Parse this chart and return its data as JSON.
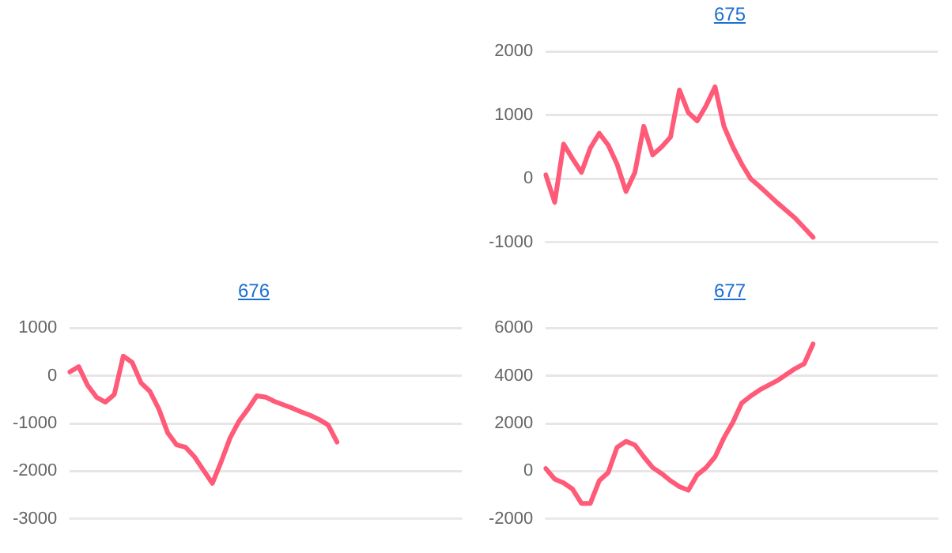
{
  "chart_data": [
    {
      "type": "line",
      "title": "675",
      "categories": [
        null,
        null,
        null,
        null,
        null,
        null,
        null,
        null,
        null,
        null,
        null,
        null,
        null,
        null,
        null,
        null,
        null,
        null,
        null,
        null,
        null,
        null,
        null,
        null,
        null,
        null,
        null,
        null,
        null,
        null,
        null,
        null,
        null,
        null,
        null,
        null,
        null,
        null,
        null,
        null,
        null,
        null,
        null,
        null,
        null
      ],
      "series": [
        {
          "color": "#ff5a78",
          "values": [
            60,
            -370,
            545,
            315,
            100,
            485,
            715,
            530,
            230,
            -200,
            100,
            825,
            375,
            500,
            655,
            1395,
            1040,
            910,
            1150,
            1445,
            825,
            500,
            230,
            0,
            -120,
            -250,
            -380,
            -500,
            -620,
            -770,
            -920,
            null,
            null,
            null,
            null,
            null,
            null,
            null,
            null,
            null,
            null,
            null,
            null,
            null,
            null
          ]
        }
      ],
      "ylim": [
        -1000,
        2000
      ],
      "yticks": [
        -1000,
        0,
        1000,
        2000
      ],
      "grid": "y",
      "legend": false,
      "tick_labels": "y",
      "marker": "none",
      "line_style": "solid"
    },
    {
      "type": "line",
      "title": "676",
      "categories": [
        null,
        null,
        null,
        null,
        null,
        null,
        null,
        null,
        null,
        null,
        null,
        null,
        null,
        null,
        null,
        null,
        null,
        null,
        null,
        null,
        null,
        null,
        null,
        null,
        null,
        null,
        null,
        null,
        null,
        null,
        null,
        null,
        null,
        null,
        null,
        null,
        null,
        null,
        null,
        null,
        null,
        null,
        null,
        null,
        null
      ],
      "series": [
        {
          "color": "#ff5a78",
          "values": [
            80,
            190,
            -200,
            -450,
            -555,
            -390,
            410,
            280,
            -150,
            -330,
            -700,
            -1200,
            -1450,
            -1500,
            -1700,
            -1980,
            -2255,
            -1800,
            -1300,
            -950,
            -700,
            -420,
            -450,
            -540,
            -610,
            -680,
            -760,
            -830,
            -920,
            -1030,
            -1390,
            null,
            null,
            null,
            null,
            null,
            null,
            null,
            null,
            null,
            null,
            null,
            null,
            null,
            null
          ]
        }
      ],
      "ylim": [
        -3000,
        1000
      ],
      "yticks": [
        -3000,
        -2000,
        -1000,
        0,
        1000
      ],
      "grid": "y",
      "legend": false,
      "tick_labels": "y",
      "marker": "none",
      "line_style": "solid"
    },
    {
      "type": "line",
      "title": "677",
      "categories": [
        null,
        null,
        null,
        null,
        null,
        null,
        null,
        null,
        null,
        null,
        null,
        null,
        null,
        null,
        null,
        null,
        null,
        null,
        null,
        null,
        null,
        null,
        null,
        null,
        null,
        null,
        null,
        null,
        null,
        null,
        null,
        null,
        null,
        null,
        null,
        null,
        null,
        null,
        null,
        null,
        null,
        null,
        null,
        null,
        null
      ],
      "series": [
        {
          "color": "#ff5a78",
          "values": [
            110,
            -335,
            -490,
            -750,
            -1350,
            -1350,
            -400,
            -60,
            1000,
            1250,
            1100,
            600,
            150,
            -100,
            -400,
            -650,
            -800,
            -155,
            150,
            600,
            1400,
            2050,
            2860,
            3150,
            3400,
            3600,
            3800,
            4050,
            4300,
            4500,
            5330,
            null,
            null,
            null,
            null,
            null,
            null,
            null,
            null,
            null,
            null,
            null,
            null,
            null,
            null
          ]
        }
      ],
      "ylim": [
        -2000,
        6000
      ],
      "yticks": [
        -2000,
        0,
        2000,
        4000,
        6000
      ],
      "grid": "y",
      "legend": false,
      "tick_labels": "y",
      "marker": "none",
      "line_style": "solid"
    }
  ]
}
